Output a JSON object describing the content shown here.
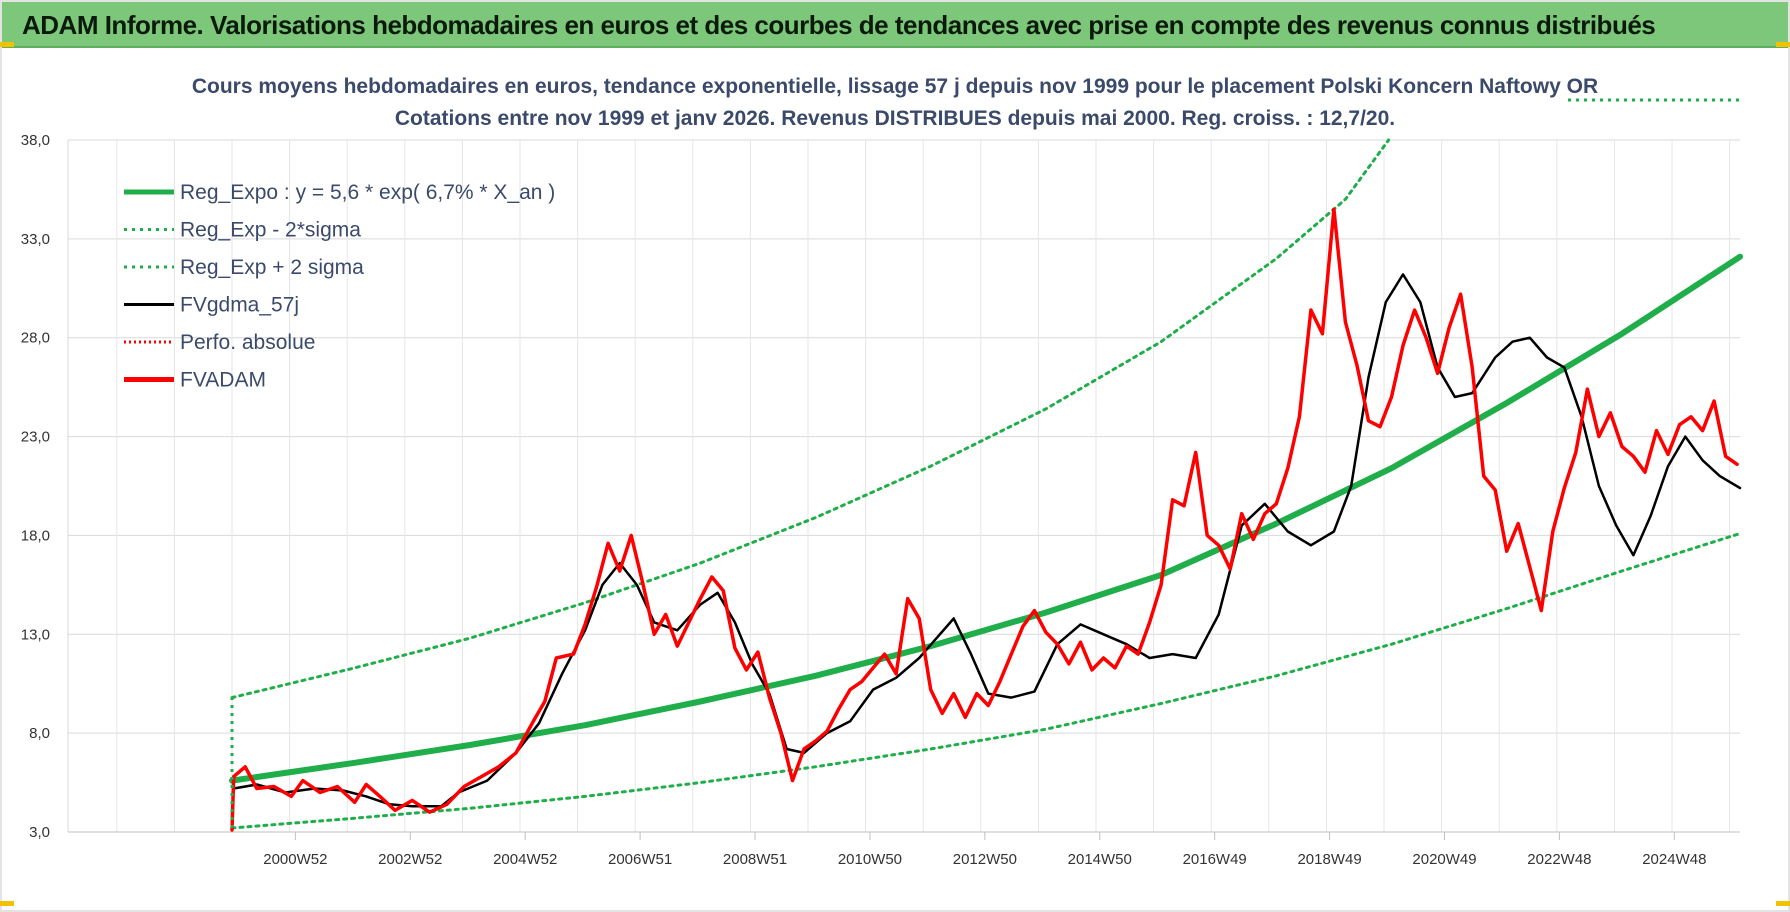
{
  "header": {
    "title": "ADAM Informe. Valorisations hebdomadaires en euros et des courbes de tendances avec prise en compte des revenus connus distribués"
  },
  "colors": {
    "header_bg": "#7cc77a",
    "trend": "#1fae4a",
    "band": "#1fae4a",
    "smoothed": "#000000",
    "price": "#ff0000",
    "perf": "#ff0000",
    "title_text": "#3b4a6b"
  },
  "chart_data": {
    "type": "line",
    "title_lines": [
      "Cours moyens hebdomadaires en euros, tendance exponentielle, lissage 57 j depuis nov 1999  pour le  placement Polski Koncern Naftowy OR",
      "Cotations entre nov 1999 et janv 2026. Revenus DISTRIBUES depuis mai 2000.  Reg. croiss. : 12,7/20."
    ],
    "ylim": [
      3,
      38
    ],
    "y_ticks": [
      "3,0",
      "8,0",
      "13,0",
      "18,0",
      "23,0",
      "28,0",
      "33,0",
      "38,0"
    ],
    "x_ticks": [
      "2000W52",
      "2002W52",
      "2004W52",
      "2006W51",
      "2008W51",
      "2010W50",
      "2012W50",
      "2014W50",
      "2016W49",
      "2018W49",
      "2020W49",
      "2022W48",
      "2024W48"
    ],
    "x_range": [
      1999.87,
      2026.05
    ],
    "legend": [
      {
        "label": "Reg_Expo : y = 5,6 * exp( 6,7% *  X_an )",
        "color": "#1fae4a",
        "style": "solid-thick"
      },
      {
        "label": "Reg_Exp - 2*sigma",
        "color": "#1fae4a",
        "style": "dotted"
      },
      {
        "label": "Reg_Exp + 2 sigma",
        "color": "#1fae4a",
        "style": "dotted"
      },
      {
        "label": "FVgdma_57j",
        "color": "#000000",
        "style": "solid"
      },
      {
        "label": "Perfo. absolue",
        "color": "#ff0000",
        "style": "dotted"
      },
      {
        "label": "FVADAM",
        "color": "#ff0000",
        "style": "solid-thick"
      }
    ],
    "series": [
      {
        "name": "Reg_Expo : y = 5,6 * exp( 6,7% *  X_an )",
        "points": [
          [
            1999.87,
            5.6
          ],
          [
            2002.0,
            6.5
          ],
          [
            2004.0,
            7.4
          ],
          [
            2006.0,
            8.4
          ],
          [
            2008.0,
            9.6
          ],
          [
            2010.0,
            10.9
          ],
          [
            2012.0,
            12.4
          ],
          [
            2014.0,
            14.1
          ],
          [
            2016.0,
            16.0
          ],
          [
            2018.0,
            18.6
          ],
          [
            2020.0,
            21.4
          ],
          [
            2022.0,
            24.7
          ],
          [
            2024.0,
            28.2
          ],
          [
            2026.05,
            32.1
          ]
        ]
      },
      {
        "name": "Reg_Exp - 2*sigma",
        "points": [
          [
            1999.87,
            3.2
          ],
          [
            2002.0,
            3.7
          ],
          [
            2004.0,
            4.2
          ],
          [
            2006.0,
            4.8
          ],
          [
            2008.0,
            5.5
          ],
          [
            2010.0,
            6.3
          ],
          [
            2012.0,
            7.2
          ],
          [
            2014.0,
            8.2
          ],
          [
            2016.0,
            9.5
          ],
          [
            2018.0,
            10.9
          ],
          [
            2020.0,
            12.5
          ],
          [
            2022.0,
            14.3
          ],
          [
            2024.0,
            16.2
          ],
          [
            2026.05,
            18.1
          ]
        ]
      },
      {
        "name": "Reg_Exp + 2 sigma",
        "points": [
          [
            1999.87,
            9.8
          ],
          [
            2002.0,
            11.3
          ],
          [
            2004.0,
            12.8
          ],
          [
            2006.0,
            14.6
          ],
          [
            2008.0,
            16.6
          ],
          [
            2010.0,
            18.9
          ],
          [
            2012.0,
            21.5
          ],
          [
            2014.0,
            24.4
          ],
          [
            2016.0,
            27.8
          ],
          [
            2018.0,
            32.0
          ],
          [
            2019.2,
            35.0
          ],
          [
            2019.95,
            38.0
          ]
        ]
      },
      {
        "name": "FVgdma_57j",
        "points": [
          [
            1999.9,
            5.2
          ],
          [
            2000.3,
            5.4
          ],
          [
            2000.8,
            5.0
          ],
          [
            2001.3,
            5.2
          ],
          [
            2001.8,
            5.1
          ],
          [
            2002.2,
            4.8
          ],
          [
            2002.6,
            4.4
          ],
          [
            2003.0,
            4.3
          ],
          [
            2003.5,
            4.3
          ],
          [
            2003.8,
            5.0
          ],
          [
            2004.3,
            5.6
          ],
          [
            2004.8,
            7.0
          ],
          [
            2005.2,
            8.5
          ],
          [
            2005.6,
            11.0
          ],
          [
            2006.0,
            13.2
          ],
          [
            2006.3,
            15.5
          ],
          [
            2006.6,
            16.6
          ],
          [
            2006.9,
            15.5
          ],
          [
            2007.2,
            13.6
          ],
          [
            2007.6,
            13.2
          ],
          [
            2008.0,
            14.5
          ],
          [
            2008.3,
            15.1
          ],
          [
            2008.6,
            13.6
          ],
          [
            2008.9,
            11.5
          ],
          [
            2009.2,
            10.0
          ],
          [
            2009.5,
            7.2
          ],
          [
            2009.8,
            7.0
          ],
          [
            2010.2,
            8.0
          ],
          [
            2010.6,
            8.6
          ],
          [
            2011.0,
            10.2
          ],
          [
            2011.4,
            10.8
          ],
          [
            2011.8,
            11.8
          ],
          [
            2012.1,
            12.8
          ],
          [
            2012.4,
            13.8
          ],
          [
            2012.7,
            12.0
          ],
          [
            2013.0,
            10.0
          ],
          [
            2013.4,
            9.8
          ],
          [
            2013.8,
            10.1
          ],
          [
            2014.2,
            12.5
          ],
          [
            2014.6,
            13.5
          ],
          [
            2015.0,
            13.0
          ],
          [
            2015.4,
            12.5
          ],
          [
            2015.8,
            11.8
          ],
          [
            2016.2,
            12.0
          ],
          [
            2016.6,
            11.8
          ],
          [
            2017.0,
            14.0
          ],
          [
            2017.4,
            18.5
          ],
          [
            2017.8,
            19.6
          ],
          [
            2018.2,
            18.2
          ],
          [
            2018.6,
            17.5
          ],
          [
            2019.0,
            18.2
          ],
          [
            2019.3,
            20.5
          ],
          [
            2019.6,
            26.0
          ],
          [
            2019.9,
            29.8
          ],
          [
            2020.2,
            31.2
          ],
          [
            2020.5,
            29.8
          ],
          [
            2020.8,
            26.5
          ],
          [
            2021.1,
            25.0
          ],
          [
            2021.4,
            25.2
          ],
          [
            2021.8,
            27.0
          ],
          [
            2022.1,
            27.8
          ],
          [
            2022.4,
            28.0
          ],
          [
            2022.7,
            27.0
          ],
          [
            2023.0,
            26.5
          ],
          [
            2023.3,
            24.0
          ],
          [
            2023.6,
            20.5
          ],
          [
            2023.9,
            18.5
          ],
          [
            2024.2,
            17.0
          ],
          [
            2024.5,
            19.0
          ],
          [
            2024.8,
            21.5
          ],
          [
            2025.1,
            23.0
          ],
          [
            2025.4,
            21.8
          ],
          [
            2025.7,
            21.0
          ],
          [
            2026.05,
            20.4
          ]
        ]
      },
      {
        "name": "FVADAM",
        "points": [
          [
            1999.87,
            3.1
          ],
          [
            1999.9,
            5.8
          ],
          [
            2000.1,
            6.3
          ],
          [
            2000.3,
            5.2
          ],
          [
            2000.6,
            5.3
          ],
          [
            2000.9,
            4.8
          ],
          [
            2001.1,
            5.6
          ],
          [
            2001.4,
            5.0
          ],
          [
            2001.7,
            5.3
          ],
          [
            2002.0,
            4.5
          ],
          [
            2002.2,
            5.4
          ],
          [
            2002.4,
            4.9
          ],
          [
            2002.7,
            4.1
          ],
          [
            2003.0,
            4.6
          ],
          [
            2003.3,
            4.0
          ],
          [
            2003.6,
            4.4
          ],
          [
            2003.9,
            5.3
          ],
          [
            2004.2,
            5.8
          ],
          [
            2004.5,
            6.3
          ],
          [
            2004.8,
            7.0
          ],
          [
            2005.1,
            8.6
          ],
          [
            2005.3,
            9.6
          ],
          [
            2005.5,
            11.8
          ],
          [
            2005.8,
            12.0
          ],
          [
            2006.0,
            13.5
          ],
          [
            2006.2,
            15.4
          ],
          [
            2006.4,
            17.6
          ],
          [
            2006.6,
            16.2
          ],
          [
            2006.8,
            18.0
          ],
          [
            2007.0,
            15.6
          ],
          [
            2007.2,
            13.0
          ],
          [
            2007.4,
            14.0
          ],
          [
            2007.6,
            12.4
          ],
          [
            2007.8,
            13.6
          ],
          [
            2008.0,
            14.8
          ],
          [
            2008.2,
            15.9
          ],
          [
            2008.4,
            15.2
          ],
          [
            2008.6,
            12.3
          ],
          [
            2008.8,
            11.2
          ],
          [
            2009.0,
            12.1
          ],
          [
            2009.2,
            9.8
          ],
          [
            2009.4,
            8.0
          ],
          [
            2009.6,
            5.6
          ],
          [
            2009.8,
            7.2
          ],
          [
            2010.0,
            7.6
          ],
          [
            2010.2,
            8.1
          ],
          [
            2010.4,
            9.2
          ],
          [
            2010.6,
            10.2
          ],
          [
            2010.8,
            10.6
          ],
          [
            2011.0,
            11.3
          ],
          [
            2011.2,
            12.0
          ],
          [
            2011.4,
            11.0
          ],
          [
            2011.6,
            14.8
          ],
          [
            2011.8,
            13.8
          ],
          [
            2012.0,
            10.2
          ],
          [
            2012.2,
            9.0
          ],
          [
            2012.4,
            10.0
          ],
          [
            2012.6,
            8.8
          ],
          [
            2012.8,
            10.0
          ],
          [
            2013.0,
            9.4
          ],
          [
            2013.2,
            10.6
          ],
          [
            2013.4,
            12.0
          ],
          [
            2013.6,
            13.4
          ],
          [
            2013.8,
            14.2
          ],
          [
            2014.0,
            13.1
          ],
          [
            2014.2,
            12.5
          ],
          [
            2014.4,
            11.5
          ],
          [
            2014.6,
            12.6
          ],
          [
            2014.8,
            11.2
          ],
          [
            2015.0,
            11.8
          ],
          [
            2015.2,
            11.3
          ],
          [
            2015.4,
            12.4
          ],
          [
            2015.6,
            12.0
          ],
          [
            2015.8,
            13.6
          ],
          [
            2016.0,
            15.5
          ],
          [
            2016.2,
            19.8
          ],
          [
            2016.4,
            19.5
          ],
          [
            2016.6,
            22.2
          ],
          [
            2016.8,
            18.0
          ],
          [
            2017.0,
            17.5
          ],
          [
            2017.2,
            16.3
          ],
          [
            2017.4,
            19.1
          ],
          [
            2017.6,
            17.8
          ],
          [
            2017.8,
            19.1
          ],
          [
            2018.0,
            19.6
          ],
          [
            2018.2,
            21.4
          ],
          [
            2018.4,
            24.0
          ],
          [
            2018.6,
            29.4
          ],
          [
            2018.8,
            28.2
          ],
          [
            2019.0,
            34.5
          ],
          [
            2019.2,
            28.8
          ],
          [
            2019.4,
            26.6
          ],
          [
            2019.6,
            23.8
          ],
          [
            2019.8,
            23.5
          ],
          [
            2020.0,
            25.0
          ],
          [
            2020.2,
            27.6
          ],
          [
            2020.4,
            29.4
          ],
          [
            2020.6,
            28.0
          ],
          [
            2020.8,
            26.2
          ],
          [
            2021.0,
            28.5
          ],
          [
            2021.2,
            30.2
          ],
          [
            2021.4,
            26.5
          ],
          [
            2021.6,
            21.0
          ],
          [
            2021.8,
            20.3
          ],
          [
            2022.0,
            17.2
          ],
          [
            2022.2,
            18.6
          ],
          [
            2022.4,
            16.4
          ],
          [
            2022.6,
            14.2
          ],
          [
            2022.8,
            18.2
          ],
          [
            2023.0,
            20.4
          ],
          [
            2023.2,
            22.2
          ],
          [
            2023.4,
            25.4
          ],
          [
            2023.6,
            23.0
          ],
          [
            2023.8,
            24.2
          ],
          [
            2024.0,
            22.5
          ],
          [
            2024.2,
            22.0
          ],
          [
            2024.4,
            21.2
          ],
          [
            2024.6,
            23.3
          ],
          [
            2024.8,
            22.1
          ],
          [
            2025.0,
            23.6
          ],
          [
            2025.2,
            24.0
          ],
          [
            2025.4,
            23.3
          ],
          [
            2025.6,
            24.8
          ],
          [
            2025.8,
            22.0
          ],
          [
            2026.0,
            21.6
          ]
        ]
      }
    ]
  }
}
